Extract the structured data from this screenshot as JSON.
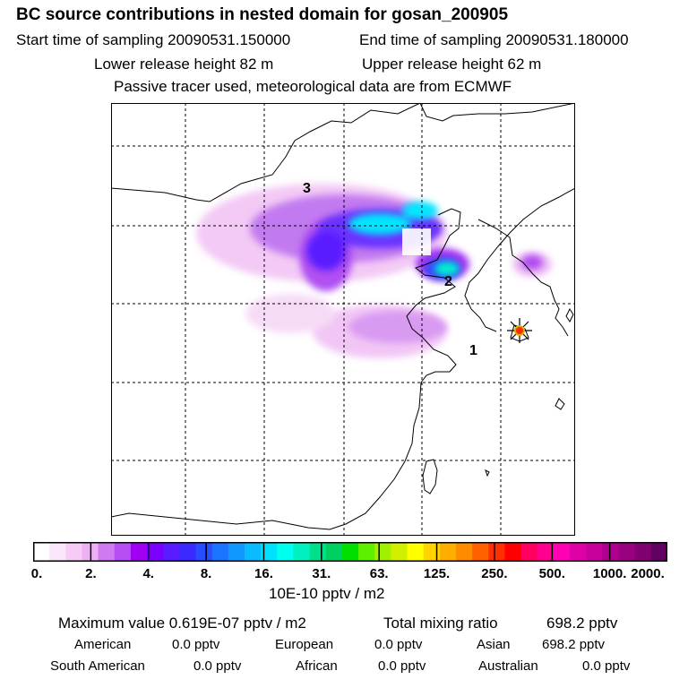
{
  "header": {
    "title": "BC  source contributions in nested domain for gosan_200905",
    "start_label": "Start time of sampling 20090531.150000",
    "end_label": "End time of sampling 20090531.180000",
    "lower_label": "Lower release height   82 m",
    "upper_label": "Upper release height   62 m",
    "note": "Passive tracer used, meteorological data are from ECMWF"
  },
  "map": {
    "region_labels": [
      "3",
      "2",
      "1"
    ],
    "receptor_color": "#ff2a00"
  },
  "colorbar": {
    "unit": "10E-10 pptv / m2",
    "ticks": [
      "0.",
      "2.",
      "4.",
      "8.",
      "16.",
      "31.",
      "63.",
      "125.",
      "250.",
      "500.",
      "1000.",
      "2000."
    ],
    "colors": [
      "#ffffff",
      "#fbe6fb",
      "#f6ccf6",
      "#eeb0f3",
      "#cf7af0",
      "#b64ff2",
      "#a200f2",
      "#7b00ff",
      "#5a1cff",
      "#3b2aff",
      "#2a4cff",
      "#1a74ff",
      "#1098ff",
      "#08bcff",
      "#00e0ff",
      "#00ffee",
      "#00f0c0",
      "#00e08a",
      "#00d060",
      "#00e000",
      "#5ef000",
      "#a0f000",
      "#d0f000",
      "#ffff00",
      "#ffd400",
      "#ffae00",
      "#ff8c00",
      "#ff6000",
      "#ff3000",
      "#ff0000",
      "#ff0060",
      "#ff0090",
      "#ff00b4",
      "#e000a8",
      "#c8009c",
      "#b00090",
      "#980080",
      "#800070",
      "#600060"
    ]
  },
  "summary": {
    "max_label": "Maximum value  0.619E-07 pptv / m2",
    "total_label": "Total mixing ratio",
    "total_value": "698.2 pptv",
    "row1": [
      {
        "name": "American",
        "value": "0.0 pptv"
      },
      {
        "name": "European",
        "value": "0.0 pptv"
      },
      {
        "name": "Asian",
        "value": "698.2 pptv"
      }
    ],
    "row2": [
      {
        "name": "South American",
        "value": "0.0 pptv"
      },
      {
        "name": "African",
        "value": "0.0 pptv"
      },
      {
        "name": "Australian",
        "value": "0.0 pptv"
      }
    ]
  }
}
